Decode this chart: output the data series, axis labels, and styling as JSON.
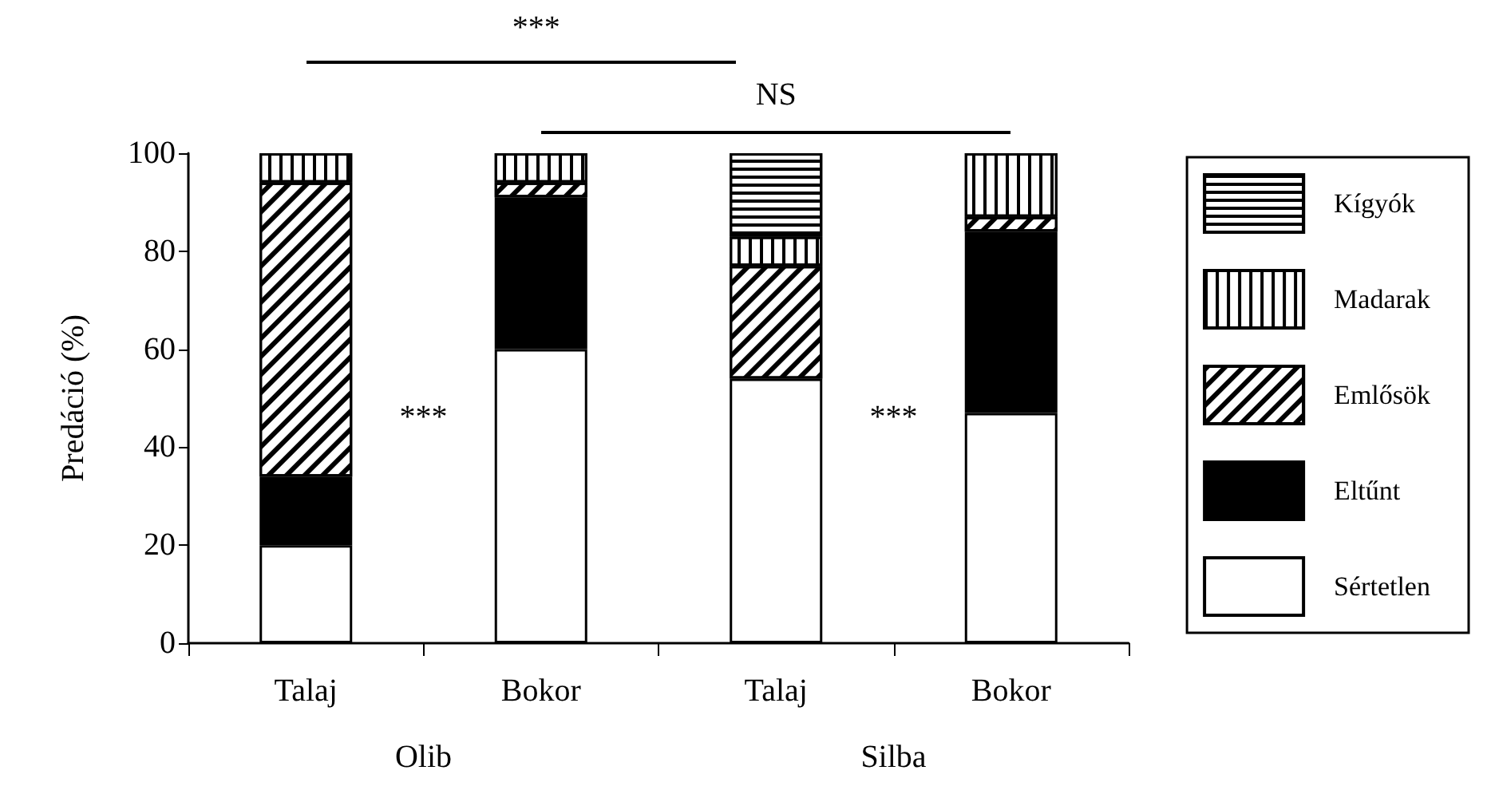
{
  "chart_data": {
    "type": "bar",
    "stacked": true,
    "ylabel": "Predáció (%)",
    "categories": [
      "Talaj",
      "Bokor",
      "Talaj",
      "Bokor"
    ],
    "series": [
      {
        "name": "Sértetlen",
        "color": "#ffffff",
        "values": [
          20,
          60,
          54,
          47
        ]
      },
      {
        "name": "Eltűnt",
        "color": "#000000",
        "values": [
          14,
          31,
          0,
          37
        ]
      },
      {
        "name": "Emlősök",
        "color": "#ffffff",
        "values": [
          60,
          3,
          23,
          3
        ]
      },
      {
        "name": "Madarak",
        "color": "#ffffff",
        "values": [
          6,
          6,
          6,
          13
        ]
      },
      {
        "name": "Kígyók",
        "color": "#ffffff",
        "values": [
          0,
          0,
          17,
          0
        ]
      }
    ],
    "ylim": [
      0,
      100
    ],
    "yticks": [
      0,
      20,
      40,
      60,
      80,
      100
    ],
    "grid": false,
    "legend": "right",
    "annotations": [
      "***",
      "NS",
      "***",
      "***",
      "Olib",
      "Silba"
    ]
  }
}
